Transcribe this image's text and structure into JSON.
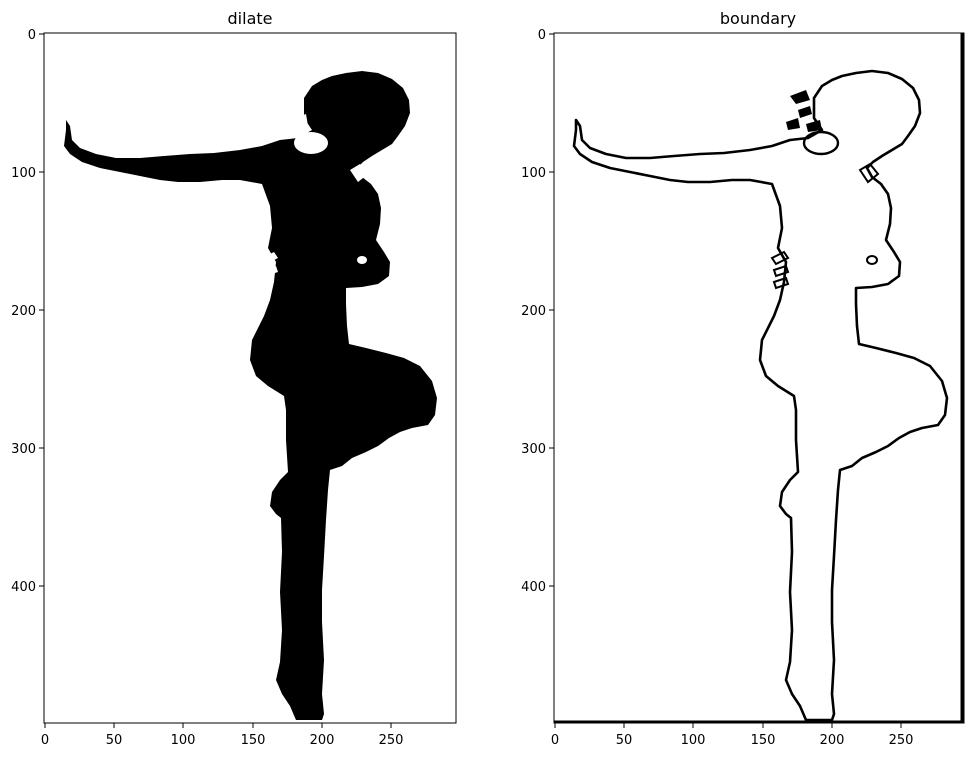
{
  "panels": [
    {
      "title": "dilate",
      "style": "filled-silhouette",
      "x_ticks": [
        "0",
        "50",
        "100",
        "150",
        "200",
        "250"
      ],
      "y_ticks": [
        "0",
        "100",
        "200",
        "300",
        "400"
      ]
    },
    {
      "title": "boundary",
      "style": "outline",
      "x_ticks": [
        "0",
        "50",
        "100",
        "150",
        "200",
        "250"
      ],
      "y_ticks": [
        "0",
        "100",
        "200",
        "300",
        "400"
      ]
    }
  ],
  "colors": {
    "foreground": "#000000",
    "background": "#ffffff",
    "axis": "#000000"
  }
}
